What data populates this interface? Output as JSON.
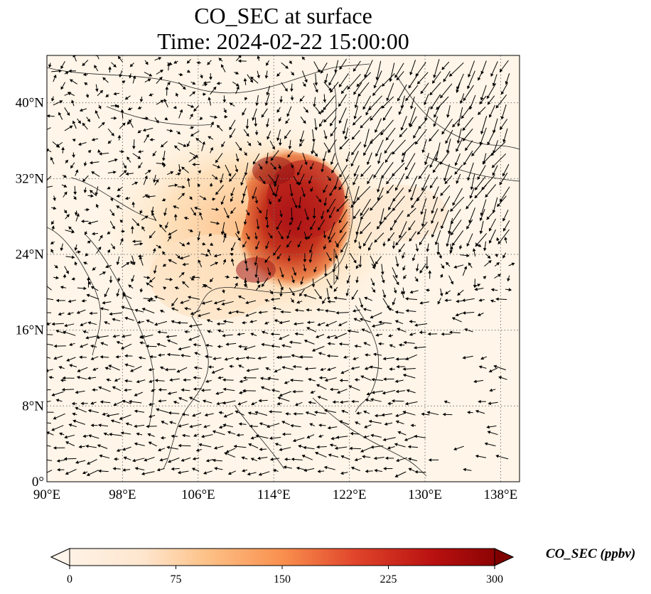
{
  "title": {
    "line1": "CO_SEC at surface",
    "line2": "Time: 2024-02-22 15:00:00"
  },
  "map": {
    "lon_range": [
      90,
      140
    ],
    "lat_range": [
      0,
      45
    ],
    "lon_ticks": [
      "90°E",
      "98°E",
      "106°E",
      "114°E",
      "122°E",
      "130°E",
      "138°E"
    ],
    "lat_ticks": [
      "0°",
      "8°N",
      "16°N",
      "24°N",
      "32°N",
      "40°N"
    ],
    "lon_tick_values": [
      90,
      98,
      106,
      114,
      122,
      130,
      138
    ],
    "lat_tick_values": [
      0,
      8,
      16,
      24,
      32,
      40
    ],
    "gridlines": true,
    "field_colormap": "OrRd-like",
    "plume_center_lonlat": [
      116,
      28
    ],
    "wind_vectors": "black arrows"
  },
  "colorbar": {
    "label": "CO_SEC (ppbv)",
    "min": 0,
    "max": 300,
    "ticks": [
      "0",
      "75",
      "150",
      "225",
      "300"
    ],
    "tick_values": [
      0,
      75,
      150,
      225,
      300
    ],
    "extend": "both",
    "colors": [
      "#fff5eb",
      "#fdd49e",
      "#fdae6b",
      "#f16913",
      "#d94801",
      "#a50f15",
      "#67000d"
    ]
  }
}
